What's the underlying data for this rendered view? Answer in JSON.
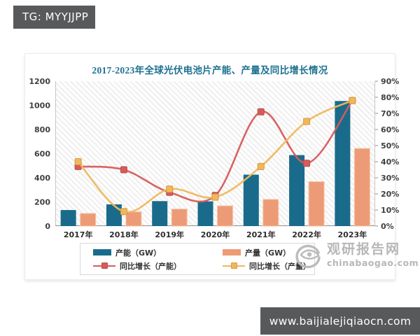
{
  "badge": {
    "text": "TG: MYYJJPP"
  },
  "watermark": {
    "site_name": "观研报告网",
    "site_url": "chinabaogao.com"
  },
  "footer": {
    "url": "www.baijialejiqiaocn.com"
  },
  "chart_data": {
    "type": "bar",
    "subtype": "grouped-bars-with-lines",
    "title": "2017-2023年全球光伏电池片产能、产量及同比增长情况",
    "categories": [
      "2017年",
      "2018年",
      "2019年",
      "2020年",
      "2021年",
      "2022年",
      "2023年"
    ],
    "series": [
      {
        "name": "产能（GW）",
        "type": "bar",
        "axis": "left",
        "color": "#1a6b8b",
        "values": [
          133,
          180,
          207,
          205,
          426,
          588,
          1036
        ]
      },
      {
        "name": "产量（GW）",
        "type": "bar",
        "axis": "left",
        "color": "#ec9b76",
        "values": [
          105,
          118,
          141,
          168,
          221,
          368,
          643
        ]
      },
      {
        "name": "同比增长（产能）",
        "type": "line",
        "axis": "right",
        "color": "#d65c5c",
        "marker_stroke": "#b94b4b",
        "values": [
          37,
          35,
          21,
          19,
          71,
          39,
          78
        ]
      },
      {
        "name": "同比增长（产量）",
        "type": "line",
        "axis": "right",
        "color": "#f1b75c",
        "marker_stroke": "#d9993a",
        "values": [
          40,
          9,
          23,
          18,
          37,
          65,
          78
        ]
      }
    ],
    "left_axis": {
      "min": 0,
      "max": 1200,
      "step": 200,
      "ticks": [
        0,
        200,
        400,
        600,
        800,
        1000,
        1200
      ]
    },
    "right_axis": {
      "min": 0,
      "max": 90,
      "step": 10,
      "unit": "%",
      "ticks": [
        "0%",
        "10%",
        "20%",
        "30%",
        "40%",
        "50%",
        "60%",
        "70%",
        "80%",
        "90%"
      ]
    },
    "grid": false,
    "legend_position": "bottom",
    "plot_background": "diagonal-hatch"
  }
}
